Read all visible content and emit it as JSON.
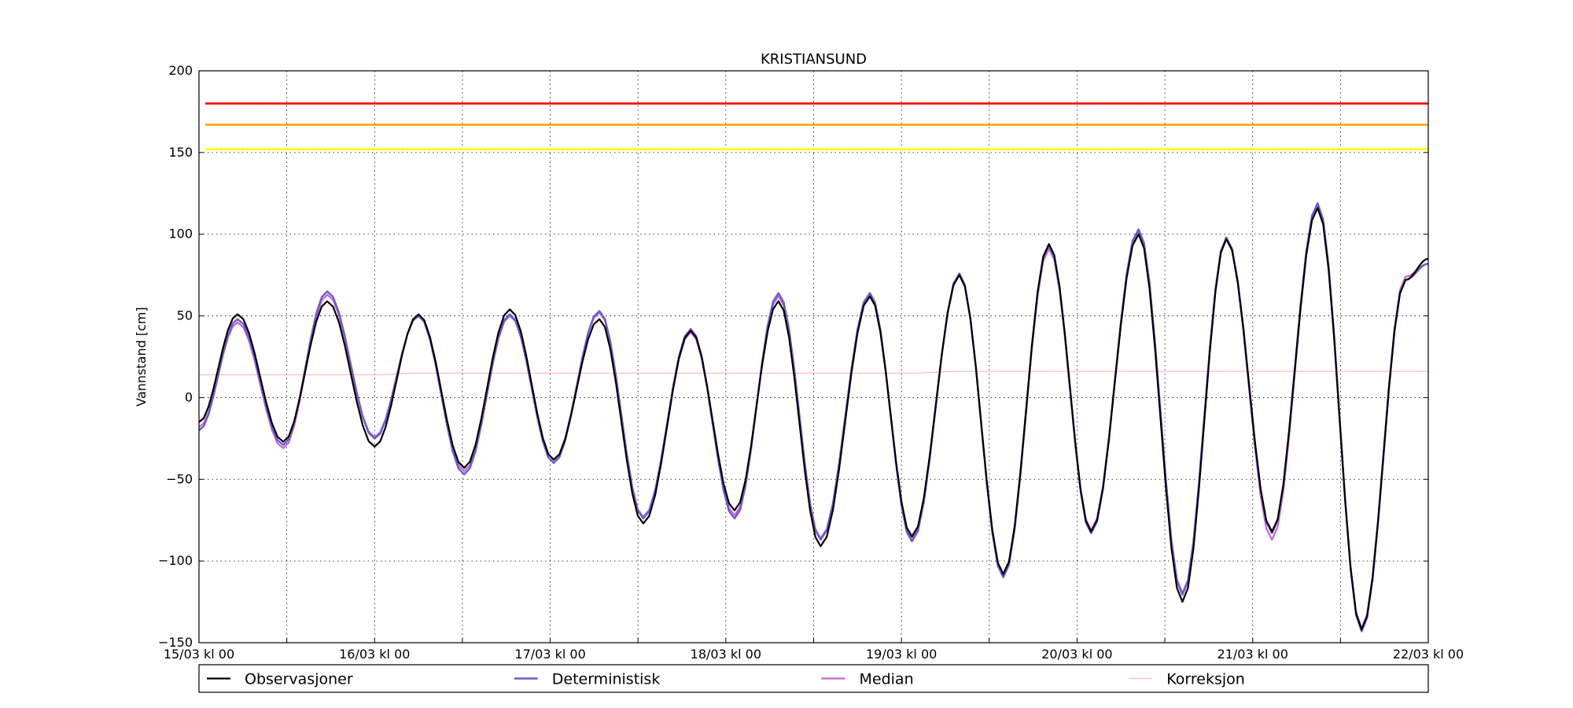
{
  "chart_data": {
    "type": "line",
    "title": "KRISTIANSUND",
    "ylabel": "Vannstand [cm]",
    "xlabel": "",
    "ylim": [
      -150,
      200
    ],
    "xlim_days": [
      0,
      7
    ],
    "yticks": [
      -150,
      -100,
      -50,
      0,
      50,
      100,
      150,
      200
    ],
    "ytick_labels": [
      "−150",
      "−100",
      "−50",
      "0",
      "50",
      "100",
      "150",
      "200"
    ],
    "xtick_labels": [
      "15/03 kl 00",
      "16/03 kl 00",
      "17/03 kl 00",
      "18/03 kl 00",
      "19/03 kl 00",
      "20/03 kl 00",
      "21/03 kl 00",
      "22/03 kl 00"
    ],
    "grid": true,
    "legend_position": "bottom",
    "thresholds": [
      {
        "value": 180,
        "color": "#ff0000"
      },
      {
        "value": 167,
        "color": "#ffa500"
      },
      {
        "value": 152,
        "color": "#ffff00"
      }
    ],
    "tide_extremes": {
      "days": [
        0,
        0.22,
        0.48,
        0.73,
        1.0,
        1.25,
        1.51,
        1.77,
        2.02,
        2.28,
        2.53,
        2.8,
        3.05,
        3.3,
        3.54,
        3.82,
        4.06,
        4.33,
        4.58,
        4.84,
        5.08,
        5.35,
        5.6,
        5.85,
        6.11,
        6.37,
        6.62,
        6.87,
        7.0
      ],
      "obs": [
        -15,
        51,
        -27,
        59,
        -30,
        51,
        -43,
        54,
        -38,
        48,
        -77,
        41,
        -69,
        59,
        -91,
        62,
        -85,
        75,
        -108,
        94,
        -82,
        100,
        -125,
        97,
        -82,
        116,
        -142,
        72,
        85
      ],
      "det": [
        -20,
        48,
        -29,
        65,
        -25,
        50,
        -47,
        51,
        -40,
        53,
        -74,
        42,
        -74,
        64,
        -87,
        64,
        -88,
        76,
        -110,
        93,
        -83,
        103,
        -120,
        98,
        -83,
        119,
        -143,
        72,
        82
      ],
      "med": [
        -18,
        46,
        -31,
        63,
        -24,
        50,
        -45,
        50,
        -38,
        52,
        -73,
        40,
        -72,
        62,
        -86,
        62,
        -87,
        75,
        -108,
        91,
        -81,
        102,
        -121,
        97,
        -87,
        117,
        -141,
        74,
        82
      ],
      "kor": [
        14,
        14,
        14,
        14,
        14,
        15,
        15,
        15,
        15,
        15,
        15,
        15,
        15,
        15,
        15,
        15,
        15,
        16,
        16,
        16,
        16,
        16,
        16,
        16,
        16,
        16,
        16,
        16,
        16
      ]
    },
    "series": [
      {
        "name": "Observasjoner",
        "key": "obs",
        "color": "#000000",
        "width": 2.2
      },
      {
        "name": "Deterministisk",
        "key": "det",
        "color": "#6a5acd",
        "width": 2.4
      },
      {
        "name": "Median",
        "key": "med",
        "color": "#c266d9",
        "width": 2.2
      },
      {
        "name": "Korreksjon",
        "key": "kor",
        "color": "#ffb6c1",
        "width": 1.2
      }
    ]
  }
}
